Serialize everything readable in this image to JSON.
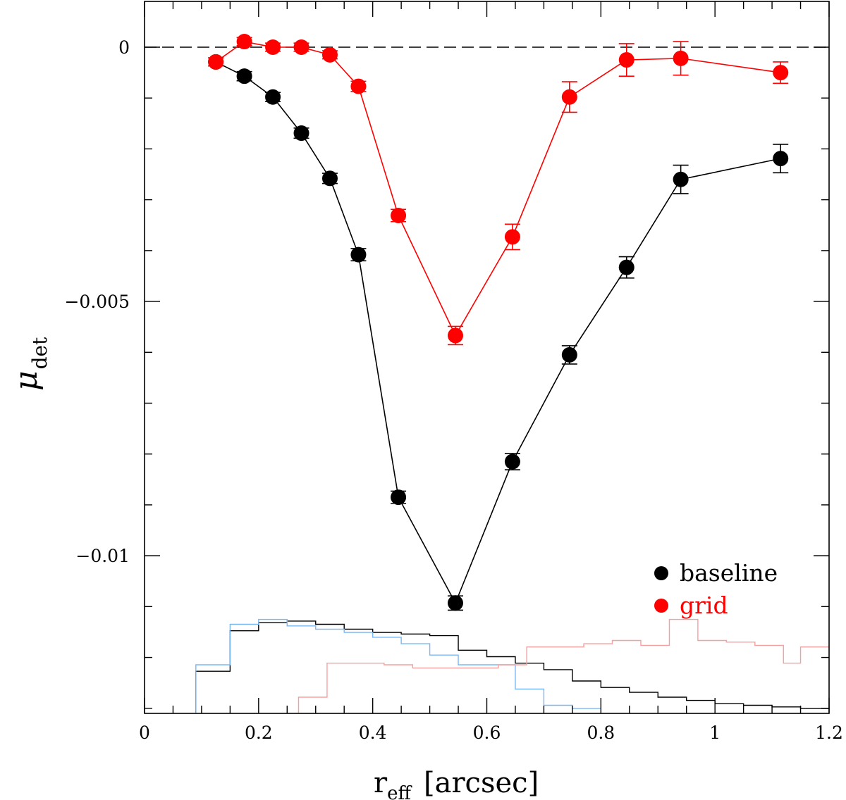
{
  "chart_data": {
    "type": "scatter",
    "xlabel": "r",
    "xlabel_sub": "eff",
    "xlabel_unit": "[arcsec]",
    "ylabel": "μ",
    "ylabel_sub": "det",
    "xlim": [
      0,
      1.2
    ],
    "ylim": [
      -0.0131,
      0.0009
    ],
    "x_ticks": [
      0,
      0.2,
      0.4,
      0.6,
      0.8,
      1,
      1.2
    ],
    "x_tick_labels": [
      "0",
      "0.2",
      "0.4",
      "0.6",
      "0.8",
      "1",
      "1.2"
    ],
    "y_ticks": [
      0,
      -0.005,
      -0.01
    ],
    "y_tick_labels": [
      "0",
      "−0.005",
      "−0.01"
    ],
    "reference_line": {
      "y": 0,
      "style": "dashed",
      "color": "#000000"
    },
    "series": [
      {
        "name": "baseline",
        "color": "#000000",
        "x": [
          0.125,
          0.175,
          0.225,
          0.275,
          0.325,
          0.375,
          0.445,
          0.545,
          0.645,
          0.745,
          0.845,
          0.94,
          1.115
        ],
        "y": [
          -0.00029,
          -0.00057,
          -0.00098,
          -0.00169,
          -0.00258,
          -0.00408,
          -0.00885,
          -0.01093,
          -0.00815,
          -0.00605,
          -0.00433,
          -0.0026,
          -0.00219
        ],
        "err": [
          8e-05,
          9e-05,
          9e-05,
          0.0001,
          0.0001,
          0.00012,
          0.00012,
          0.00014,
          0.00016,
          0.00018,
          0.00021,
          0.00028,
          0.00028
        ]
      },
      {
        "name": "grid",
        "color": "#ff0000",
        "x": [
          0.125,
          0.175,
          0.225,
          0.275,
          0.325,
          0.375,
          0.445,
          0.545,
          0.645,
          0.745,
          0.845,
          0.94,
          1.115
        ],
        "y": [
          -0.00029,
          0.00011,
          0.0,
          0.0,
          -0.00015,
          -0.00077,
          -0.00331,
          -0.00567,
          -0.00373,
          -0.00098,
          -0.00025,
          -0.00022,
          -0.0005
        ],
        "err": [
          8e-05,
          8e-05,
          8e-05,
          8e-05,
          8e-05,
          0.0001,
          0.00012,
          0.00018,
          0.00025,
          0.0003,
          0.00032,
          0.00033,
          0.00021
        ]
      }
    ],
    "histograms": [
      {
        "name": "baseline distribution",
        "color": "#000000",
        "edges": [
          0.09,
          0.15,
          0.2,
          0.25,
          0.3,
          0.35,
          0.4,
          0.45,
          0.5,
          0.55,
          0.6,
          0.65,
          0.7,
          0.75,
          0.8,
          0.85,
          0.9,
          0.95,
          1.0,
          1.05,
          1.1,
          1.15,
          1.2
        ],
        "counts": [
          0.26,
          0.51,
          0.56,
          0.57,
          0.55,
          0.52,
          0.5,
          0.49,
          0.48,
          0.39,
          0.35,
          0.31,
          0.27,
          0.2,
          0.16,
          0.13,
          0.1,
          0.08,
          0.06,
          0.05,
          0.04,
          0.03,
          0.025
        ]
      },
      {
        "name": "light blue distribution",
        "color": "#7ab8f5",
        "edges": [
          0.09,
          0.15,
          0.2,
          0.25,
          0.3,
          0.35,
          0.4,
          0.45,
          0.5,
          0.55,
          0.6,
          0.65,
          0.7,
          0.75,
          0.8
        ],
        "counts": [
          0.3,
          0.55,
          0.58,
          0.54,
          0.52,
          0.5,
          0.47,
          0.43,
          0.36,
          0.3,
          0.3,
          0.15,
          0.05,
          0.03
        ]
      },
      {
        "name": "light red distribution",
        "color": "#f5a0a0",
        "edges": [
          0.27,
          0.32,
          0.37,
          0.42,
          0.47,
          0.57,
          0.62,
          0.67,
          0.72,
          0.77,
          0.82,
          0.87,
          0.92,
          0.97,
          1.02,
          1.07,
          1.12,
          1.15,
          1.2
        ],
        "counts": [
          0.1,
          0.31,
          0.31,
          0.3,
          0.28,
          0.28,
          0.3,
          0.41,
          0.41,
          0.43,
          0.45,
          0.42,
          0.58,
          0.45,
          0.44,
          0.42,
          0.31,
          0.41
        ]
      }
    ],
    "legend": {
      "position": "bottom-right",
      "entries": [
        {
          "label": "baseline",
          "color": "#000000"
        },
        {
          "label": "grid",
          "color": "#ff0000"
        }
      ]
    }
  }
}
